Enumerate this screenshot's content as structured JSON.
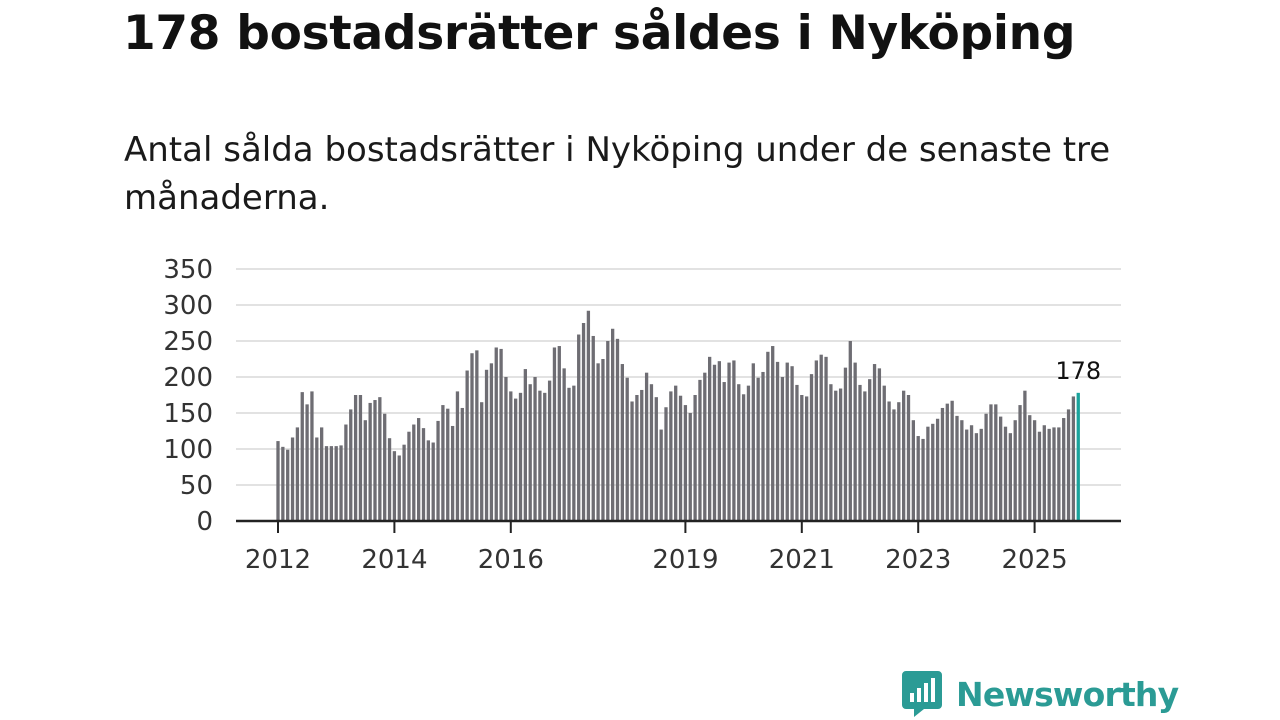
{
  "header": {
    "title": "178 bostadsrätter såldes i Nyköping",
    "subtitle": "Antal sålda bostadsrätter i Nyköping under de senaste tre månaderna."
  },
  "brand": {
    "name": "Newsworthy",
    "color": "#2b9b95",
    "icon": "newsworthy-logo-icon"
  },
  "colors": {
    "bar": "#6e6d73",
    "highlight": "#1aa39c",
    "grid": "#d9d9d9",
    "axis": "#222222"
  },
  "chart_data": {
    "type": "bar",
    "title": "",
    "xlabel": "",
    "ylabel": "",
    "ylim": [
      0,
      350
    ],
    "yticks": [
      0,
      50,
      100,
      150,
      200,
      250,
      300,
      350
    ],
    "grid": true,
    "x_start": "2012-01",
    "xticks": [
      {
        "label": "2012",
        "index": 0
      },
      {
        "label": "2014",
        "index": 24
      },
      {
        "label": "2016",
        "index": 48
      },
      {
        "label": "2019",
        "index": 84
      },
      {
        "label": "2021",
        "index": 108
      },
      {
        "label": "2023",
        "index": 132
      },
      {
        "label": "2025",
        "index": 156
      }
    ],
    "highlight_label": "178",
    "values": [
      111,
      103,
      99,
      116,
      130,
      179,
      162,
      180,
      116,
      130,
      104,
      104,
      104,
      105,
      134,
      155,
      175,
      175,
      140,
      164,
      168,
      172,
      149,
      115,
      97,
      91,
      106,
      124,
      134,
      143,
      129,
      112,
      109,
      139,
      161,
      156,
      132,
      180,
      157,
      209,
      233,
      237,
      165,
      210,
      219,
      241,
      239,
      200,
      180,
      170,
      178,
      211,
      190,
      200,
      181,
      178,
      195,
      241,
      243,
      212,
      185,
      188,
      259,
      275,
      292,
      257,
      219,
      225,
      250,
      267,
      253,
      218,
      199,
      166,
      175,
      182,
      206,
      190,
      172,
      127,
      158,
      180,
      188,
      174,
      161,
      150,
      175,
      196,
      206,
      228,
      217,
      222,
      193,
      220,
      223,
      190,
      176,
      188,
      219,
      199,
      207,
      235,
      243,
      221,
      200,
      220,
      215,
      189,
      175,
      173,
      204,
      223,
      231,
      228,
      190,
      181,
      184,
      213,
      250,
      220,
      189,
      180,
      197,
      218,
      212,
      188,
      166,
      155,
      165,
      181,
      175,
      140,
      118,
      114,
      131,
      135,
      142,
      157,
      163,
      167,
      146,
      140,
      127,
      133,
      122,
      128,
      149,
      162,
      162,
      145,
      131,
      122,
      140,
      161,
      181,
      147,
      140,
      124,
      133,
      128,
      130,
      130,
      143,
      155,
      173,
      178
    ]
  }
}
